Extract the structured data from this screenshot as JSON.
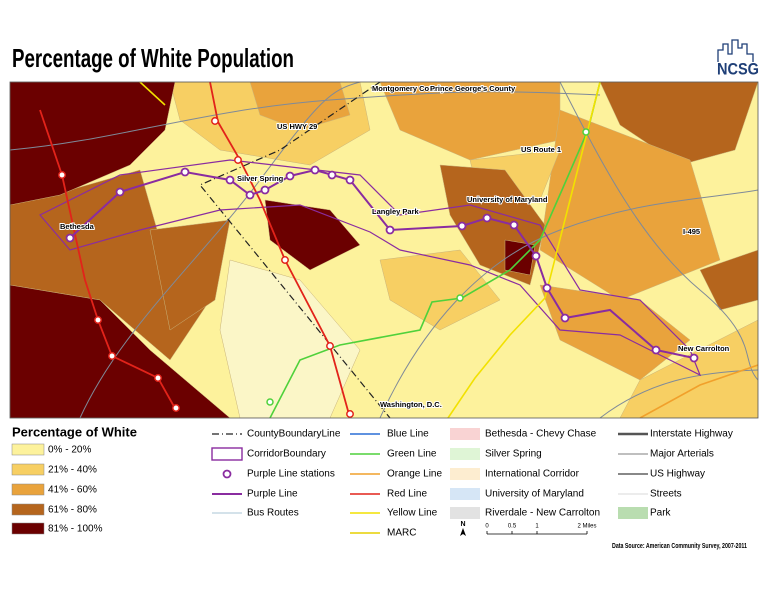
{
  "header": {
    "title": "Percentage of White Population",
    "logo": "NCSG"
  },
  "map": {
    "labels": [
      "Montgomery County",
      "Prince George's County",
      "US HWY 29",
      "Silver Spring",
      "US Route 1",
      "Bethesda",
      "Langley Park",
      "University of Maryland",
      "I-495",
      "New Carrolton",
      "Washington, D.C."
    ]
  },
  "legend": {
    "title": "Percentage of White",
    "classes": [
      "0% - 20%",
      "21% - 40%",
      "41% - 60%",
      "61% - 80%",
      "81% - 100%"
    ],
    "layers": [
      "CountyBoundaryLine",
      "CorridorBoundary",
      "Purple Line stations",
      "Purple Line",
      "Bus Routes"
    ],
    "transit": [
      "Blue Line",
      "Green Line",
      "Orange Line",
      "Red Line",
      "Yellow Line",
      "MARC"
    ],
    "areas": [
      "Bethesda - Chevy Chase",
      "Silver Spring",
      "International Corridor",
      "University of Maryland",
      "Riverdale - New Carrolton"
    ],
    "roads": [
      "Interstate Highway",
      "Major Arterials",
      "US Highway",
      "Streets",
      "Park"
    ]
  },
  "scale": {
    "north": "N",
    "labels": [
      "0",
      "0.5",
      "1",
      "2 Miles"
    ]
  },
  "source": "Data Source: American Community Survey, 2007-2011"
}
